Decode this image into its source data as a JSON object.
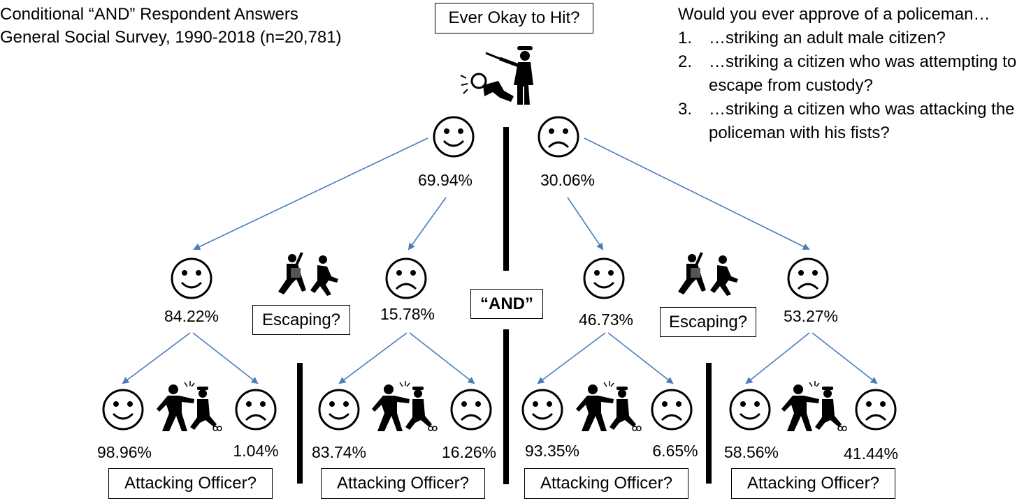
{
  "title": {
    "line1": "Conditional “AND” Respondent Answers",
    "line2": "General Social Survey, 1990-2018 (n=20,781)"
  },
  "questions": {
    "heading": "Would you ever approve of a policeman…",
    "items": [
      {
        "num": "1.",
        "text": "…striking an adult male citizen?"
      },
      {
        "num": "2.",
        "text": "…striking a citizen who was attempting to escape from custody?"
      },
      {
        "num": "3.",
        "text": "…striking a citizen who was attacking the policeman with his fists?"
      }
    ]
  },
  "root": {
    "label": "Ever Okay to Hit?",
    "icon": "police-striking-citizen-icon"
  },
  "and_label": "“AND”",
  "level1": {
    "yes": "69.94%",
    "no": "30.06%"
  },
  "level2": {
    "label": "Escaping?",
    "icon": "police-chasing-runner-icon",
    "left": {
      "yes": "84.22%",
      "no": "15.78%"
    },
    "right": {
      "yes": "46.73%",
      "no": "53.27%"
    }
  },
  "level3": {
    "label": "Attacking Officer?",
    "icon": "citizen-attacking-officer-icon",
    "groups": [
      {
        "yes": "98.96%",
        "no": "1.04%"
      },
      {
        "yes": "83.74%",
        "no": "16.26%"
      },
      {
        "yes": "93.35%",
        "no": "6.65%"
      },
      {
        "yes": "58.56%",
        "no": "41.44%"
      }
    ]
  },
  "colors": {
    "arrow": "#4a7ebb",
    "text": "#000000"
  },
  "face_icons": {
    "yes": "smiley-face-icon",
    "no": "frowning-face-icon"
  }
}
